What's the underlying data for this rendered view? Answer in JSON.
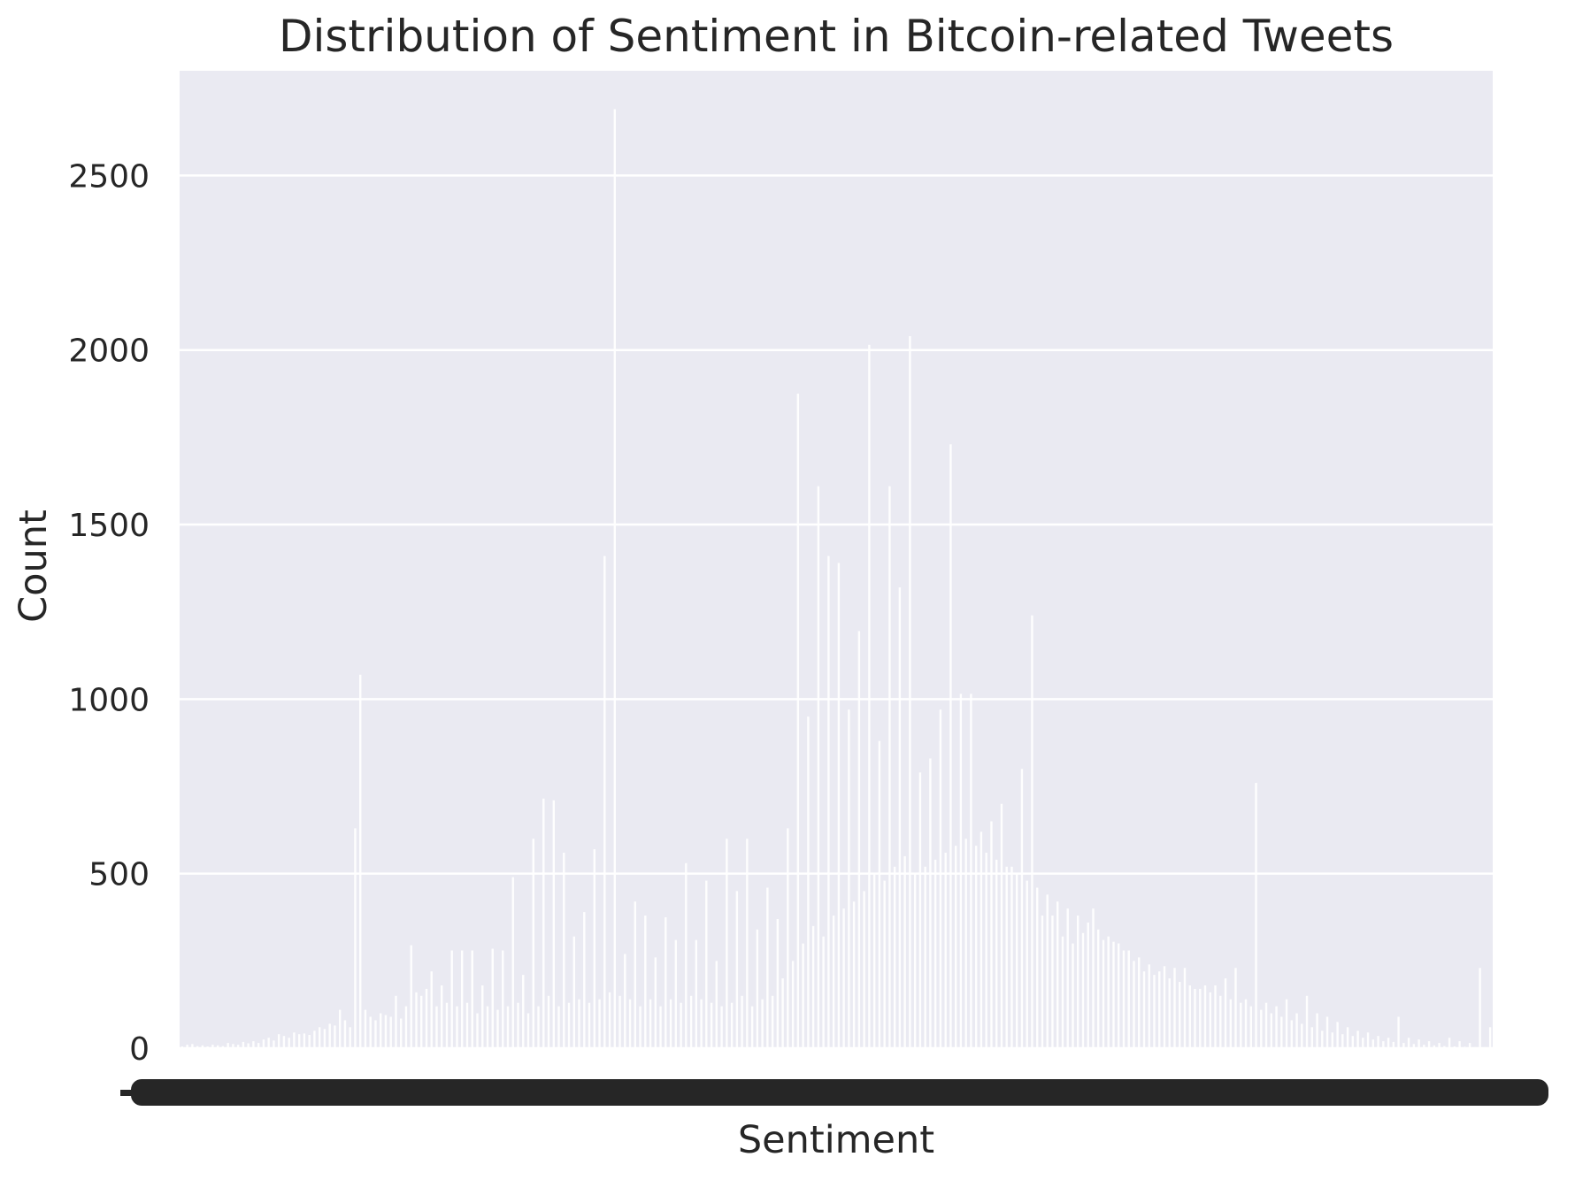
{
  "chart_data": {
    "type": "bar",
    "title": "Distribution of Sentiment in Bitcoin-related Tweets",
    "xlabel": "Sentiment",
    "ylabel": "Count",
    "ylim": [
      0,
      2800
    ],
    "yticks": [
      0,
      500,
      1000,
      1500,
      2000,
      2500
    ],
    "grid": true,
    "x_tick_labels_overlapping": true,
    "colors": {
      "background": "#EAEAF2",
      "bars": "#FFFFFF",
      "grid": "#FFFFFF",
      "text": "#262626"
    },
    "values": [
      5,
      10,
      12,
      6,
      8,
      5,
      10,
      8,
      6,
      15,
      12,
      10,
      18,
      14,
      20,
      15,
      25,
      30,
      22,
      40,
      35,
      30,
      45,
      40,
      42,
      38,
      50,
      60,
      55,
      70,
      65,
      110,
      80,
      60,
      630,
      1070,
      110,
      90,
      80,
      100,
      95,
      90,
      150,
      85,
      120,
      295,
      160,
      150,
      170,
      220,
      120,
      180,
      130,
      280,
      120,
      280,
      130,
      280,
      100,
      180,
      120,
      285,
      110,
      280,
      120,
      490,
      130,
      210,
      100,
      600,
      120,
      715,
      150,
      710,
      120,
      560,
      130,
      320,
      140,
      390,
      130,
      570,
      140,
      1410,
      160,
      2690,
      150,
      270,
      140,
      420,
      120,
      380,
      140,
      260,
      120,
      375,
      140,
      310,
      130,
      530,
      150,
      310,
      140,
      480,
      130,
      250,
      120,
      600,
      130,
      450,
      150,
      600,
      120,
      340,
      140,
      460,
      150,
      370,
      200,
      630,
      250,
      1875,
      300,
      950,
      350,
      1610,
      320,
      1410,
      380,
      1390,
      400,
      970,
      420,
      1195,
      450,
      2015,
      500,
      880,
      480,
      1610,
      520,
      1320,
      550,
      2040,
      500,
      790,
      520,
      830,
      540,
      970,
      560,
      1730,
      580,
      1015,
      600,
      1015,
      580,
      620,
      560,
      650,
      540,
      700,
      520,
      520,
      500,
      800,
      480,
      1240,
      460,
      380,
      440,
      380,
      420,
      320,
      400,
      300,
      380,
      330,
      360,
      400,
      340,
      310,
      320,
      305,
      300,
      280,
      280,
      250,
      260,
      220,
      240,
      210,
      220,
      235,
      200,
      230,
      190,
      230,
      180,
      170,
      170,
      180,
      160,
      180,
      150,
      200,
      140,
      230,
      130,
      140,
      120,
      760,
      110,
      130,
      100,
      120,
      90,
      140,
      80,
      100,
      70,
      150,
      60,
      100,
      50,
      90,
      45,
      75,
      40,
      60,
      35,
      50,
      30,
      45,
      25,
      35,
      20,
      30,
      18,
      90,
      15,
      30,
      12,
      25,
      10,
      20,
      8,
      15,
      6,
      30,
      5,
      20,
      4,
      15,
      3,
      230,
      3,
      60
    ]
  }
}
